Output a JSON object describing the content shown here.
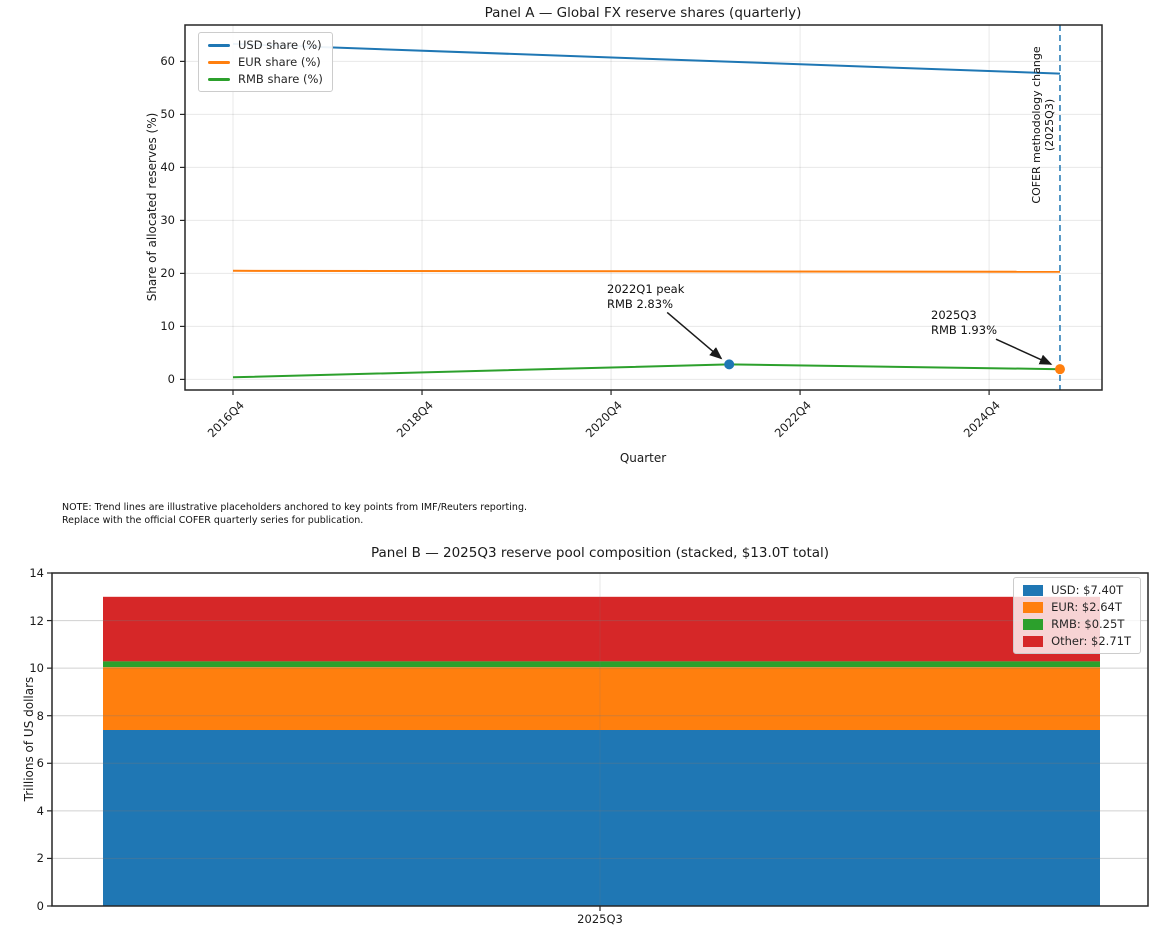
{
  "figure": {
    "note_line1": "NOTE: Trend lines are illustrative placeholders anchored to key points from IMF/Reuters reporting.",
    "note_line2": "Replace with the official COFER quarterly series for publication."
  },
  "colors": {
    "blue": "#1f77b4",
    "orange": "#ff7f0e",
    "green": "#2ca02c",
    "red": "#d62728",
    "grid_light": "rgba(0,0,0,0.09)",
    "grid_over": "rgba(120,120,120,0.35)",
    "spine": "#262626",
    "arrow": "#1a1a1a"
  },
  "chart_data": [
    {
      "id": "panelA",
      "type": "line",
      "title": "Panel A — Global FX reserve shares (quarterly)",
      "xlabel": "Quarter",
      "ylabel": "Share of allocated reserves (%)",
      "x_unit": "quarters since 2016Q4",
      "xlim": [
        -2.1,
        36.8
      ],
      "ylim": [
        -2.1,
        66.9
      ],
      "grid": true,
      "legend_position": "upper left",
      "y_ticks": [
        0,
        10,
        20,
        30,
        40,
        50,
        60
      ],
      "x_ticks": [
        {
          "pos": 0,
          "label": "2016Q4"
        },
        {
          "pos": 8,
          "label": "2018Q4"
        },
        {
          "pos": 16,
          "label": "2020Q4"
        },
        {
          "pos": 24,
          "label": "2022Q4"
        },
        {
          "pos": 32,
          "label": "2024Q4"
        }
      ],
      "series": [
        {
          "name": "USD share (%)",
          "color": "#1f77b4",
          "points": [
            [
              0,
              63.3
            ],
            [
              35,
              57.7
            ]
          ]
        },
        {
          "name": "EUR share (%)",
          "color": "#ff7f0e",
          "points": [
            [
              0,
              20.5
            ],
            [
              35,
              20.3
            ]
          ]
        },
        {
          "name": "RMB share (%)",
          "color": "#2ca02c",
          "points": [
            [
              0,
              0.4
            ],
            [
              21,
              2.83
            ],
            [
              35,
              1.93
            ]
          ]
        }
      ],
      "markers": [
        {
          "x": 21,
          "y": 2.83,
          "color": "#1f77b4",
          "label": "2022Q1 RMB peak"
        },
        {
          "x": 35,
          "y": 1.93,
          "color": "#ff7f0e",
          "label": "2025Q3 RMB"
        }
      ],
      "vline": {
        "x": 35,
        "color": "#1f77b4",
        "style": "dashed",
        "label_line1": "COFER methodology change",
        "label_line2": "(2025Q3)"
      },
      "annotations": [
        {
          "line1": "2022Q1 peak",
          "line2": "RMB 2.83%",
          "target": [
            21,
            2.83
          ]
        },
        {
          "line1": "2025Q3",
          "line2": "RMB 1.93%",
          "target": [
            35,
            1.93
          ]
        }
      ]
    },
    {
      "id": "panelB",
      "type": "bar",
      "title": "Panel B — 2025Q3 reserve pool composition (stacked, $13.0T total)",
      "xlabel": "",
      "ylabel": "Trillions of US dollars",
      "categories": [
        "2025Q3"
      ],
      "ylim": [
        0,
        14
      ],
      "y_ticks": [
        0,
        2,
        4,
        6,
        8,
        10,
        12,
        14
      ],
      "grid": true,
      "legend_position": "upper right",
      "total_label": "$13.0T",
      "segments": [
        {
          "name": "USD",
          "value": 7.4,
          "color": "#1f77b4",
          "legend": "USD: $7.40T"
        },
        {
          "name": "EUR",
          "value": 2.64,
          "color": "#ff7f0e",
          "legend": "EUR: $2.64T"
        },
        {
          "name": "RMB",
          "value": 0.25,
          "color": "#2ca02c",
          "legend": "RMB: $0.25T"
        },
        {
          "name": "Other",
          "value": 2.71,
          "color": "#d62728",
          "legend": "Other: $2.71T"
        }
      ]
    }
  ]
}
